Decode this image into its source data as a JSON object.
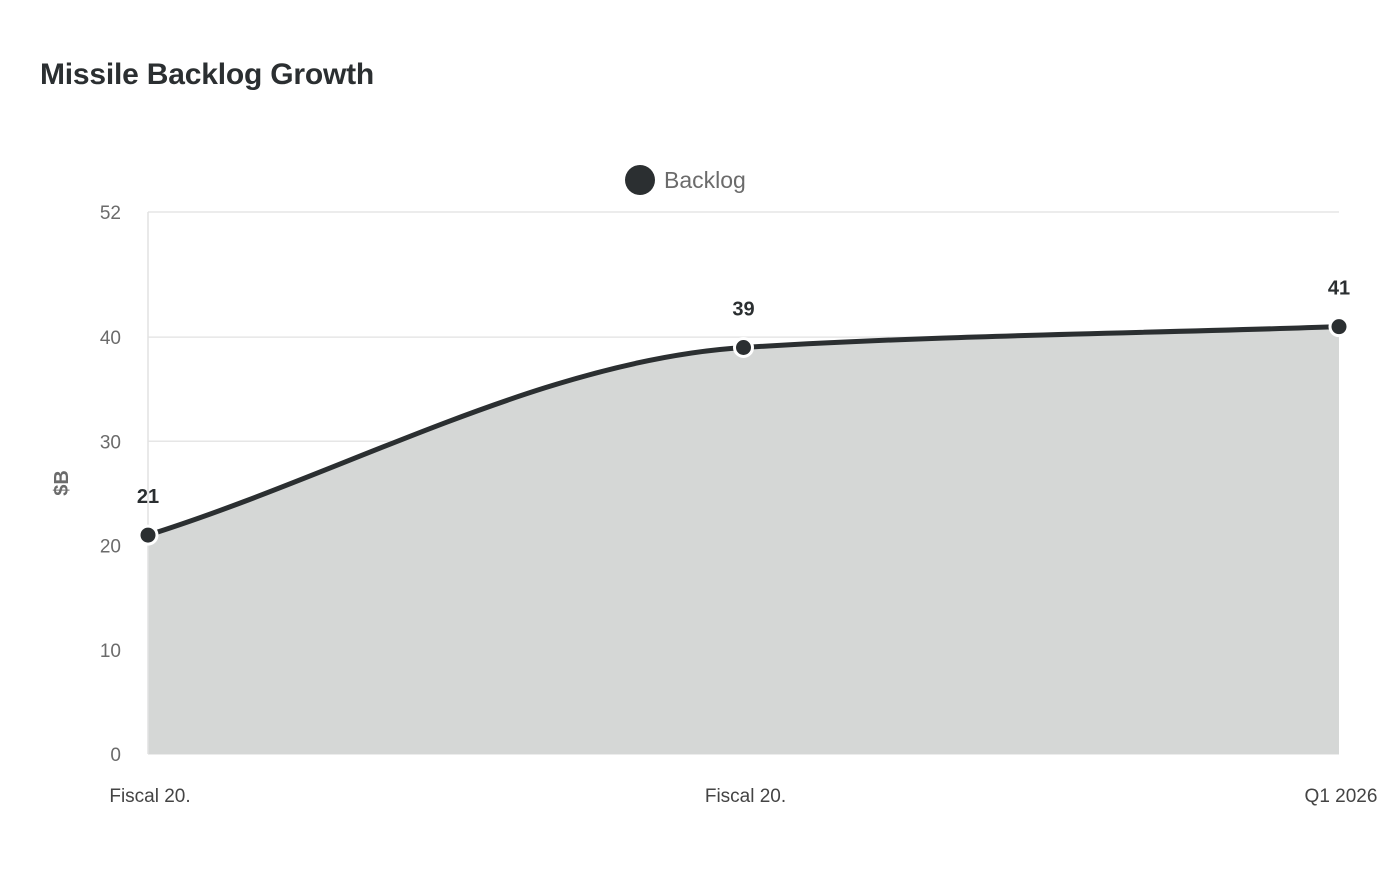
{
  "chart_data": {
    "type": "area",
    "title": "Missile Backlog Growth",
    "ylabel": "$B",
    "xlabel": "",
    "categories": [
      "Fiscal 20.",
      "Fiscal 20.",
      "Q1 2026"
    ],
    "series": [
      {
        "name": "Backlog",
        "values": [
          21,
          39,
          41
        ],
        "data_labels": [
          "21",
          "39",
          "41"
        ]
      }
    ],
    "ylim": [
      0,
      52
    ],
    "yticks": [
      "0",
      "10",
      "20",
      "30",
      "40",
      "52"
    ],
    "grid": true,
    "legend": "top-center",
    "colors": {
      "line": "#2b2f31",
      "fill": "#d5d7d6",
      "grid": "#e6e6e6",
      "marker_stroke": "#ffffff"
    }
  }
}
